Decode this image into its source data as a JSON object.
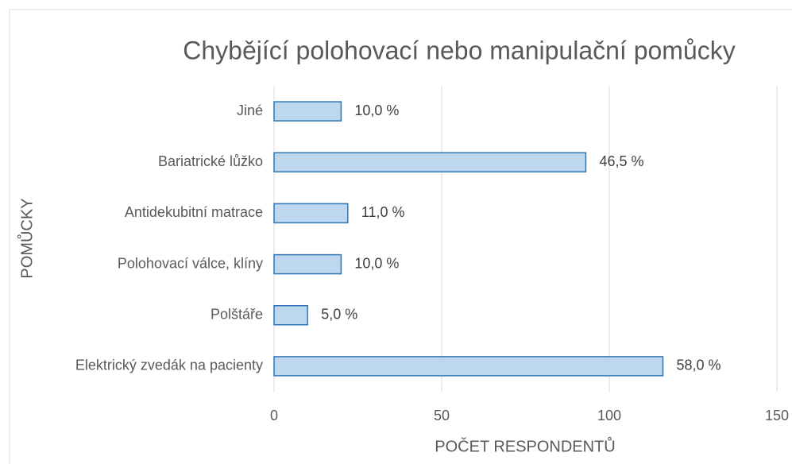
{
  "chart_data": {
    "type": "barh",
    "title": "Chybějící polohovací nebo manipulační pomůcky",
    "x_label": "POČET RESPONDENTŮ",
    "y_label": "POMŮCKY",
    "categories": [
      "Jiné",
      "Bariatrické lůžko",
      "Antidekubitní matrace",
      "Polohovací válce, klíny",
      "Polštáře",
      "Elektrický zvedák na pacienty"
    ],
    "values": [
      20,
      93,
      22,
      20,
      10,
      116
    ],
    "value_labels": [
      "10,0 %",
      "46,5 %",
      "11,0 %",
      "10,0 %",
      "5,0 %",
      "58,0 %"
    ],
    "color": "#bdd7ee",
    "edge_color": "#2e75b6",
    "xlim": [
      0,
      150
    ],
    "xticks": [
      0,
      50,
      100,
      150
    ],
    "grid": true
  }
}
